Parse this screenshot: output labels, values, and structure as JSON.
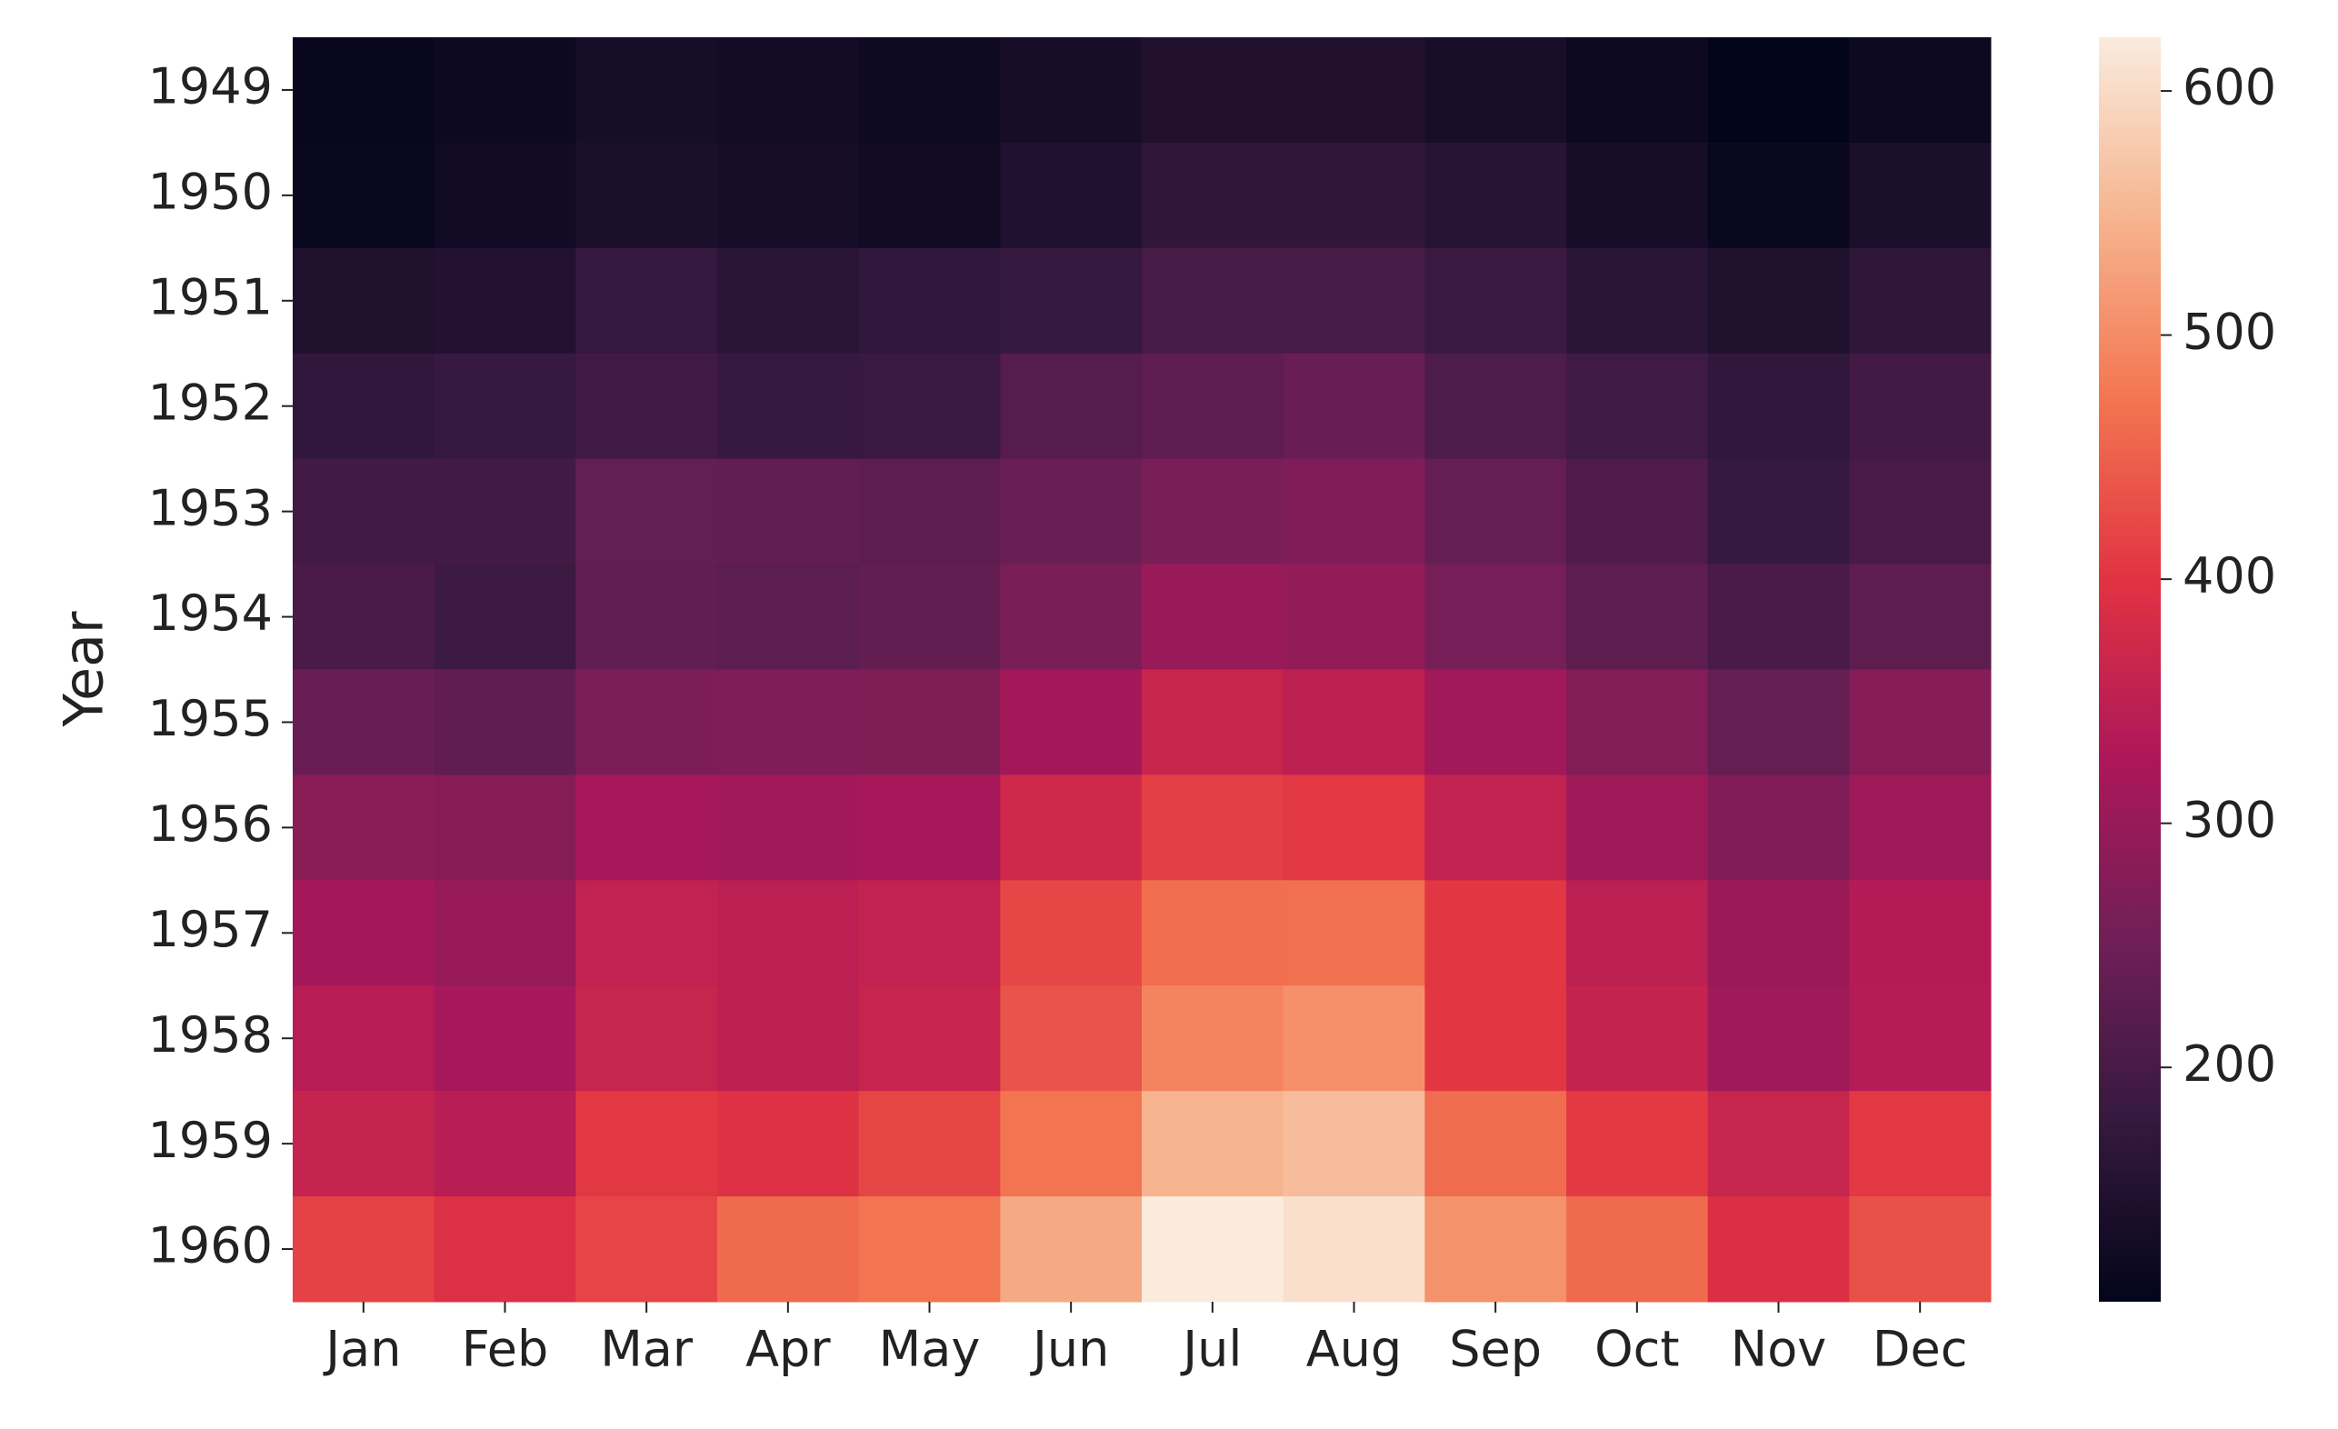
{
  "chart_data": {
    "type": "heatmap",
    "y_label": "Year",
    "x": [
      "Jan",
      "Feb",
      "Mar",
      "Apr",
      "May",
      "Jun",
      "Jul",
      "Aug",
      "Sep",
      "Oct",
      "Nov",
      "Dec"
    ],
    "y": [
      "1949",
      "1950",
      "1951",
      "1952",
      "1953",
      "1954",
      "1955",
      "1956",
      "1957",
      "1958",
      "1959",
      "1960"
    ],
    "values": [
      [
        112,
        118,
        132,
        129,
        121,
        135,
        148,
        148,
        136,
        119,
        104,
        118
      ],
      [
        115,
        126,
        141,
        135,
        125,
        149,
        170,
        170,
        158,
        133,
        114,
        140
      ],
      [
        145,
        150,
        178,
        163,
        172,
        178,
        199,
        199,
        184,
        162,
        146,
        166
      ],
      [
        171,
        180,
        193,
        181,
        183,
        218,
        230,
        242,
        209,
        191,
        172,
        194
      ],
      [
        196,
        196,
        236,
        235,
        229,
        243,
        264,
        272,
        237,
        211,
        180,
        201
      ],
      [
        204,
        188,
        235,
        227,
        234,
        264,
        302,
        293,
        259,
        229,
        203,
        229
      ],
      [
        242,
        233,
        267,
        269,
        270,
        315,
        364,
        347,
        312,
        274,
        237,
        278
      ],
      [
        284,
        277,
        317,
        313,
        318,
        374,
        413,
        405,
        355,
        306,
        271,
        306
      ],
      [
        315,
        301,
        356,
        348,
        355,
        422,
        465,
        467,
        404,
        347,
        305,
        336
      ],
      [
        340,
        318,
        362,
        348,
        363,
        435,
        491,
        505,
        404,
        359,
        310,
        337
      ],
      [
        360,
        342,
        406,
        396,
        420,
        472,
        548,
        559,
        463,
        407,
        362,
        405
      ],
      [
        417,
        391,
        419,
        461,
        472,
        535,
        622,
        606,
        508,
        461,
        390,
        432
      ]
    ],
    "clim": [
      104,
      622
    ],
    "cticks": [
      200,
      300,
      400,
      500,
      600
    ],
    "colormap": [
      "#03051a",
      "#35193e",
      "#701f57",
      "#ad1759",
      "#e13342",
      "#f37651",
      "#f6b48f",
      "#faebdd"
    ]
  }
}
